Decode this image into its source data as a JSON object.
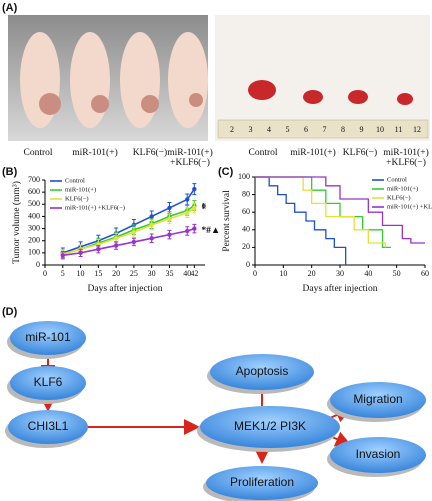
{
  "panel_labels": [
    "(A)",
    "(B)",
    "(C)",
    "(D)"
  ],
  "photos": {
    "left_labels": [
      [
        "Control"
      ],
      [
        "miR-101(+)"
      ],
      [
        "KLF6(−)"
      ],
      [
        "miR-101(+)",
        "+KLF6(−)"
      ]
    ],
    "right_labels": [
      [
        "Control"
      ],
      [
        "miR-101(+)"
      ],
      [
        "KLF6(−)"
      ],
      [
        "miR-101(+)",
        "+KLF6(−)"
      ]
    ],
    "ruler": [
      2,
      3,
      4,
      5,
      6,
      7,
      8,
      9,
      10,
      11,
      12
    ]
  },
  "chart_data": [
    {
      "type": "line",
      "xlabel": "Days after injection",
      "ylabel": "Tumor volume (mm³)",
      "x": [
        5,
        10,
        15,
        20,
        25,
        30,
        35,
        40,
        42
      ],
      "xlim": [
        0,
        45
      ],
      "xticks": [
        0,
        5,
        10,
        15,
        20,
        25,
        30,
        35,
        40,
        42
      ],
      "ylim": [
        0,
        700
      ],
      "yticks": [
        0,
        100,
        200,
        300,
        400,
        500,
        600,
        700
      ],
      "series": [
        {
          "name": "Control",
          "color": "#1f4fd6",
          "values": [
            100,
            150,
            200,
            260,
            330,
            400,
            470,
            540,
            625
          ],
          "errors": [
            40,
            40,
            45,
            45,
            45,
            45,
            45,
            45,
            45
          ]
        },
        {
          "name": "miR-101(+)",
          "color": "#33cc33",
          "values": [
            90,
            130,
            180,
            230,
            290,
            340,
            400,
            450,
            490
          ],
          "errors": [
            35,
            35,
            40,
            40,
            40,
            40,
            40,
            40,
            40
          ],
          "annotation": "*"
        },
        {
          "name": "KLF6(−)",
          "color": "#e6e03a",
          "values": [
            90,
            130,
            170,
            220,
            270,
            330,
            380,
            430,
            470
          ],
          "errors": [
            35,
            35,
            40,
            40,
            40,
            40,
            40,
            40,
            40
          ],
          "annotation": "*"
        },
        {
          "name": "miR-101(+) +KLF6(−)",
          "color": "#9933cc",
          "values": [
            80,
            100,
            130,
            160,
            190,
            220,
            250,
            280,
            300
          ],
          "errors": [
            30,
            30,
            30,
            30,
            30,
            35,
            35,
            35,
            35
          ],
          "annotation": "*#▲"
        }
      ]
    },
    {
      "type": "step",
      "xlabel": "Days after injection",
      "ylabel": "Percent survival",
      "xlim": [
        0,
        60
      ],
      "xticks": [
        0,
        10,
        20,
        30,
        40,
        50,
        60
      ],
      "ylim": [
        0,
        100
      ],
      "yticks": [
        0,
        20,
        40,
        60,
        80,
        100
      ],
      "series": [
        {
          "name": "Control",
          "color": "#1f4fd6",
          "x": [
            0,
            5,
            8,
            11,
            14,
            18,
            21,
            25,
            28,
            32
          ],
          "values": [
            100,
            90,
            80,
            70,
            60,
            50,
            40,
            30,
            20,
            0
          ]
        },
        {
          "name": "miR-101(+)",
          "color": "#33cc33",
          "x": [
            0,
            20,
            25,
            30,
            38,
            45,
            48
          ],
          "values": [
            100,
            85,
            70,
            55,
            40,
            20,
            20
          ]
        },
        {
          "name": "KLF6(−)",
          "color": "#e6e03a",
          "x": [
            0,
            17,
            20,
            25,
            35,
            40,
            46
          ],
          "values": [
            100,
            85,
            70,
            55,
            40,
            25,
            20
          ]
        },
        {
          "name": "miR-101(+) +KLF6(−)",
          "color": "#9933cc",
          "x": [
            0,
            25,
            30,
            40,
            45,
            52,
            55,
            60
          ],
          "values": [
            100,
            90,
            75,
            60,
            45,
            30,
            25,
            25
          ]
        }
      ]
    }
  ],
  "diagram": {
    "nodes": [
      {
        "label": "miR-101"
      },
      {
        "label": "KLF6"
      },
      {
        "label": "CHI3L1"
      },
      {
        "label": "Apoptosis"
      },
      {
        "label": "MEK1/2 PI3K"
      },
      {
        "label": "Proliferation"
      },
      {
        "label": "Migration"
      },
      {
        "label": "Invasion"
      }
    ]
  }
}
